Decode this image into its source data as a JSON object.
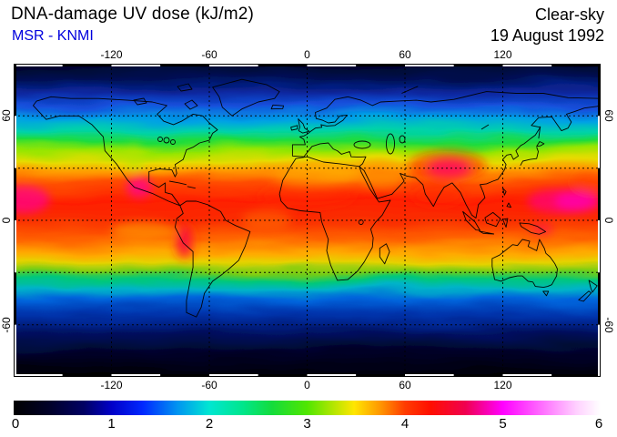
{
  "header": {
    "title": "DNA-damage UV dose (kJ/m2)",
    "source": "MSR - KNMI",
    "source_color": "#0000dd",
    "condition": "Clear-sky",
    "date": "19 August 1992"
  },
  "map": {
    "lon_ticks": [
      "-120",
      "-60",
      "0",
      "60",
      "120"
    ],
    "lat_ticks": [
      "60",
      "0",
      "-60"
    ],
    "frame_style": "zebra-30deg-segments",
    "grid_style": "dashed-black"
  },
  "colorbar": {
    "tick_labels": [
      "0",
      "1",
      "2",
      "3",
      "4",
      "5",
      "6"
    ]
  },
  "chart_data": {
    "type": "heatmap",
    "title": "DNA-damage UV dose (kJ/m2)",
    "variable": "DNA-damage UV dose",
    "units": "kJ/m2",
    "condition": "Clear-sky",
    "date": "19 August 1992",
    "source": "MSR - KNMI",
    "lon_range": [
      -180,
      180
    ],
    "lat_range": [
      -90,
      90
    ],
    "grid_step_deg": {
      "lon": 60,
      "lat": 30
    },
    "scale": {
      "min": 0,
      "max": 6,
      "ticks": [
        0,
        1,
        2,
        3,
        4,
        5,
        6
      ]
    },
    "colorbar_stops": [
      {
        "offset": 0.0,
        "color": "#000000"
      },
      {
        "offset": 0.06,
        "color": "#000028"
      },
      {
        "offset": 0.12,
        "color": "#000064"
      },
      {
        "offset": 0.167,
        "color": "#0000c8"
      },
      {
        "offset": 0.22,
        "color": "#0028ff"
      },
      {
        "offset": 0.28,
        "color": "#0096f0"
      },
      {
        "offset": 0.333,
        "color": "#00e6d2"
      },
      {
        "offset": 0.39,
        "color": "#00e68c"
      },
      {
        "offset": 0.44,
        "color": "#14dc3c"
      },
      {
        "offset": 0.5,
        "color": "#50e600"
      },
      {
        "offset": 0.545,
        "color": "#b4e600"
      },
      {
        "offset": 0.58,
        "color": "#ffe600"
      },
      {
        "offset": 0.625,
        "color": "#ff9600"
      },
      {
        "offset": 0.667,
        "color": "#ff3c00"
      },
      {
        "offset": 0.71,
        "color": "#ff0f00"
      },
      {
        "offset": 0.77,
        "color": "#f00050"
      },
      {
        "offset": 0.833,
        "color": "#ff00ff"
      },
      {
        "offset": 0.9,
        "color": "#ff6eff"
      },
      {
        "offset": 0.96,
        "color": "#ffd2ff"
      },
      {
        "offset": 1.0,
        "color": "#ffffff"
      }
    ],
    "zonal_gradient": [
      {
        "offset": 0.0,
        "color": "#000003"
      },
      {
        "offset": 0.055,
        "color": "#00001e"
      },
      {
        "offset": 0.105,
        "color": "#001055"
      },
      {
        "offset": 0.145,
        "color": "#0a28a0"
      },
      {
        "offset": 0.18,
        "color": "#1450dc"
      },
      {
        "offset": 0.215,
        "color": "#00a0e6"
      },
      {
        "offset": 0.25,
        "color": "#00d2aa"
      },
      {
        "offset": 0.28,
        "color": "#1edc3c"
      },
      {
        "offset": 0.307,
        "color": "#96e600"
      },
      {
        "offset": 0.333,
        "color": "#e6dc00"
      },
      {
        "offset": 0.36,
        "color": "#ff9b00"
      },
      {
        "offset": 0.395,
        "color": "#ff5000"
      },
      {
        "offset": 0.445,
        "color": "#ff1e00"
      },
      {
        "offset": 0.5,
        "color": "#fa2d00"
      },
      {
        "offset": 0.553,
        "color": "#ff6400"
      },
      {
        "offset": 0.59,
        "color": "#ffaa00"
      },
      {
        "offset": 0.615,
        "color": "#e6d200"
      },
      {
        "offset": 0.643,
        "color": "#78cd14"
      },
      {
        "offset": 0.667,
        "color": "#00c878"
      },
      {
        "offset": 0.692,
        "color": "#00b4c8"
      },
      {
        "offset": 0.722,
        "color": "#0064dc"
      },
      {
        "offset": 0.762,
        "color": "#0032aa"
      },
      {
        "offset": 0.81,
        "color": "#001264"
      },
      {
        "offset": 0.87,
        "color": "#000428"
      },
      {
        "offset": 0.935,
        "color": "#000006"
      },
      {
        "offset": 1.0,
        "color": "#000000"
      }
    ],
    "zonal_profile": [
      {
        "lat": 90,
        "value": 0.0
      },
      {
        "lat": 80,
        "value": 0.1
      },
      {
        "lat": 70,
        "value": 0.4
      },
      {
        "lat": 60,
        "value": 0.9
      },
      {
        "lat": 55,
        "value": 1.3
      },
      {
        "lat": 50,
        "value": 1.7
      },
      {
        "lat": 45,
        "value": 2.1
      },
      {
        "lat": 40,
        "value": 2.5
      },
      {
        "lat": 35,
        "value": 2.9
      },
      {
        "lat": 30,
        "value": 3.3
      },
      {
        "lat": 25,
        "value": 3.7
      },
      {
        "lat": 20,
        "value": 4.0
      },
      {
        "lat": 15,
        "value": 4.3
      },
      {
        "lat": 10,
        "value": 4.4
      },
      {
        "lat": 5,
        "value": 4.4
      },
      {
        "lat": 0,
        "value": 4.3
      },
      {
        "lat": -5,
        "value": 4.1
      },
      {
        "lat": -10,
        "value": 3.8
      },
      {
        "lat": -15,
        "value": 3.5
      },
      {
        "lat": -20,
        "value": 3.1
      },
      {
        "lat": -25,
        "value": 2.7
      },
      {
        "lat": -30,
        "value": 2.2
      },
      {
        "lat": -35,
        "value": 1.7
      },
      {
        "lat": -40,
        "value": 1.3
      },
      {
        "lat": -45,
        "value": 0.9
      },
      {
        "lat": -50,
        "value": 0.6
      },
      {
        "lat": -55,
        "value": 0.3
      },
      {
        "lat": -60,
        "value": 0.15
      },
      {
        "lat": -70,
        "value": 0.05
      },
      {
        "lat": -80,
        "value": 0.0
      },
      {
        "lat": -90,
        "value": 0.0
      }
    ],
    "hotspots": [
      {
        "name": "tibetan-plateau",
        "lon": 87,
        "lat": 30,
        "lon_r": 13,
        "lat_r": 5,
        "value": 5.3,
        "color": "#ff00c8",
        "opacity": 0.9
      },
      {
        "name": "tibetan-plateau-halo",
        "lon": 86,
        "lat": 31,
        "lon_r": 24,
        "lat_r": 9,
        "value": 4.6,
        "color": "#ff1400",
        "opacity": 0.55
      },
      {
        "name": "peruvian-andes",
        "lon": -75.5,
        "lat": -12,
        "lon_r": 3.5,
        "lat_r": 8,
        "value": 5.0,
        "color": "#f0008c",
        "opacity": 0.9
      },
      {
        "name": "peruvian-andes-halo",
        "lon": -75,
        "lat": -12,
        "lon_r": 7,
        "lat_r": 11,
        "value": 4.5,
        "color": "#ff1e00",
        "opacity": 0.5
      },
      {
        "name": "mexican-highlands",
        "lon": -103,
        "lat": 19,
        "lon_r": 8,
        "lat_r": 6,
        "value": 4.8,
        "color": "#ff0096",
        "opacity": 0.75
      },
      {
        "name": "central-pacific",
        "lon": -174,
        "lat": 12,
        "lon_r": 16,
        "lat_r": 8,
        "value": 4.8,
        "color": "#ff0096",
        "opacity": 0.7
      },
      {
        "name": "west-pacific",
        "lon": 155,
        "lat": 11,
        "lon_r": 20,
        "lat_r": 7,
        "value": 4.7,
        "color": "#ff0082",
        "opacity": 0.7
      },
      {
        "name": "west-pacific-bright",
        "lon": 166,
        "lat": 11,
        "lon_r": 14,
        "lat_r": 6,
        "value": 4.8,
        "color": "#ff00b4",
        "opacity": 0.75
      },
      {
        "name": "new-guinea",
        "lon": 144,
        "lat": -5,
        "lon_r": 7,
        "lat_r": 3,
        "value": 4.6,
        "color": "#ff0064",
        "opacity": 0.6
      },
      {
        "name": "india-bay-of-bengal",
        "lon": 80,
        "lat": 14,
        "lon_r": 16,
        "lat_r": 6,
        "value": 4.4,
        "color": "#ff1e00",
        "opacity": 0.5
      },
      {
        "name": "sahara",
        "lon": 8,
        "lat": 26,
        "lon_r": 28,
        "lat_r": 5,
        "value": 3.6,
        "color": "#ffc800",
        "opacity": 0.45
      },
      {
        "name": "arabia",
        "lon": 46,
        "lat": 23,
        "lon_r": 13,
        "lat_r": 5,
        "value": 3.8,
        "color": "#ffbe00",
        "opacity": 0.4
      },
      {
        "name": "rocky-mountains",
        "lon": -106,
        "lat": 36,
        "lon_r": 6,
        "lat_r": 8,
        "value": 3.0,
        "color": "#b4e600",
        "opacity": 0.5
      },
      {
        "name": "sahel",
        "lon": 0,
        "lat": 14,
        "lon_r": 30,
        "lat_r": 7,
        "value": 4.3,
        "color": "#ff2800",
        "opacity": 0.4
      },
      {
        "name": "equatorial-atlantic",
        "lon": -25,
        "lat": 0,
        "lon_r": 15,
        "lat_r": 6,
        "value": 4.0,
        "color": "#ff7800",
        "opacity": 0.45
      },
      {
        "name": "northwest-pacific",
        "lon": 175,
        "lat": 22,
        "lon_r": 12,
        "lat_r": 6,
        "value": 4.2,
        "color": "#ff3c00",
        "opacity": 0.5
      },
      {
        "name": "equatorial-east-pacific",
        "lon": -100,
        "lat": -6,
        "lon_r": 20,
        "lat_r": 5,
        "value": 3.8,
        "color": "#ffb400",
        "opacity": 0.5
      }
    ]
  }
}
